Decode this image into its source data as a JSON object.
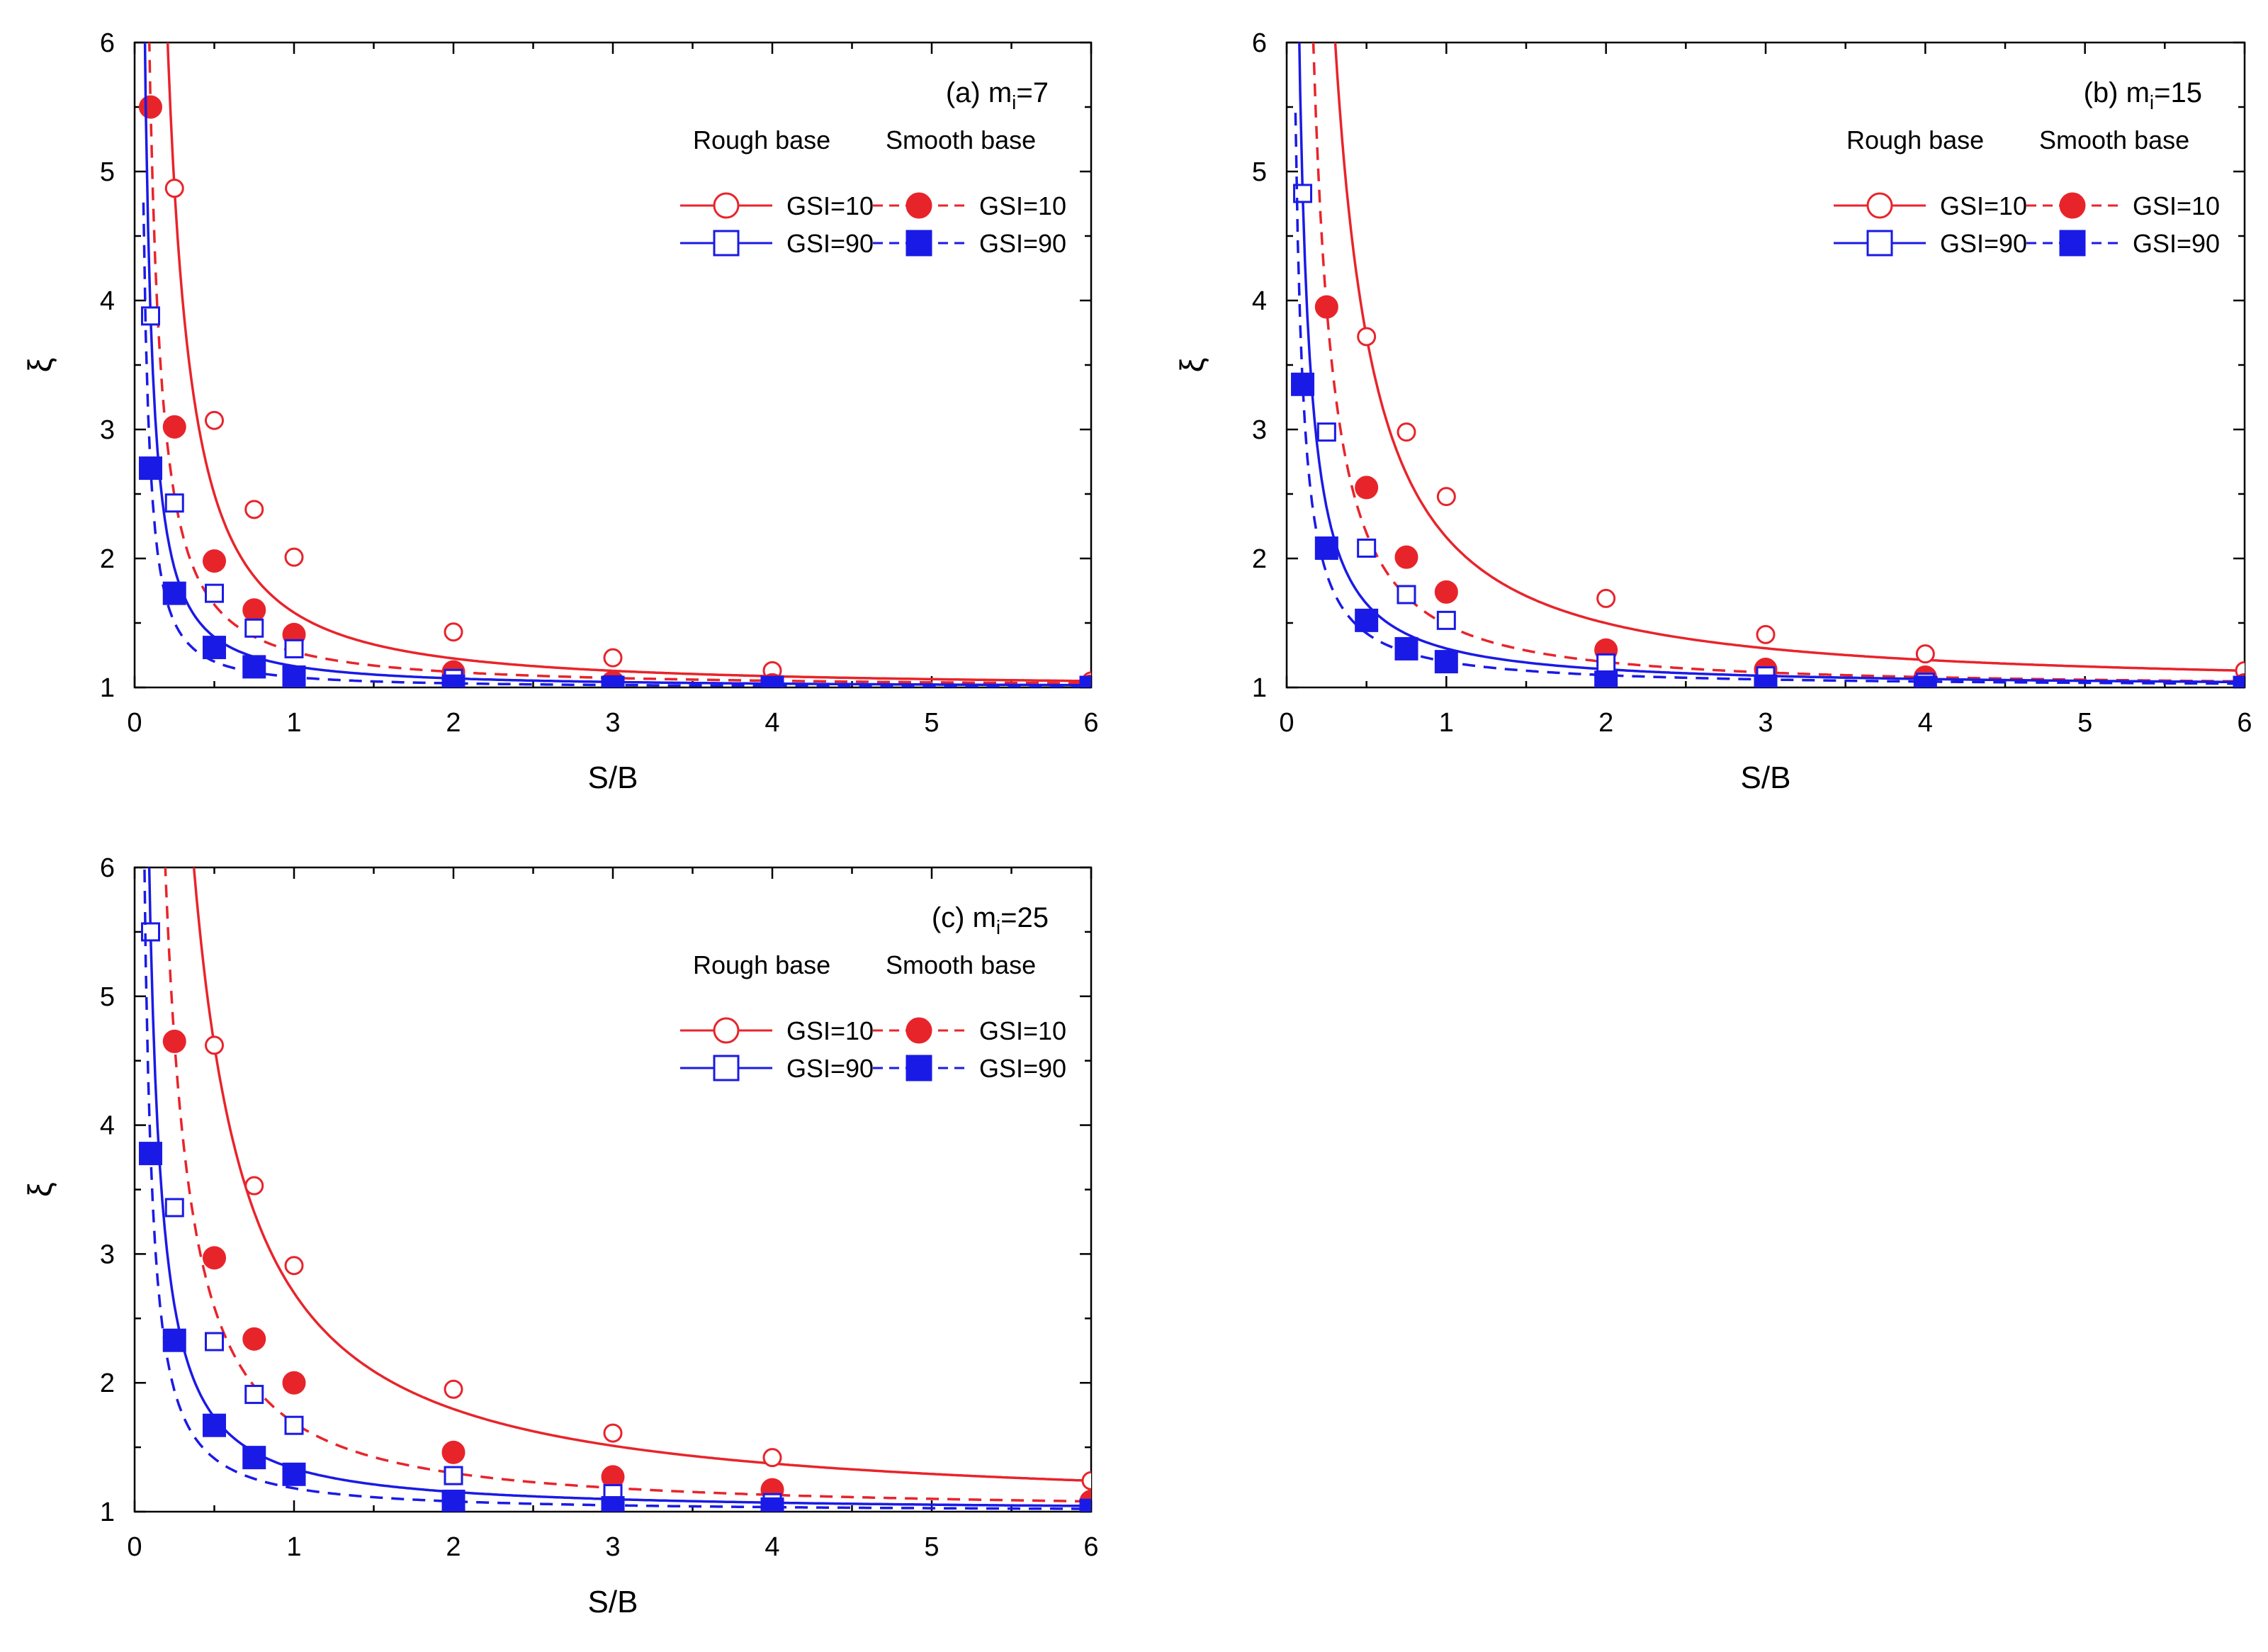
{
  "colors": {
    "rough_gsi10": "#e8242b",
    "smooth_gsi10": "#e8242b",
    "rough_gsi90": "#1a1ae6",
    "smooth_gsi90": "#1a1ae6",
    "axis": "#000000"
  },
  "legend": {
    "rough_header": "Rough base",
    "smooth_header": "Smooth base",
    "gsi10_label": "GSI=10",
    "gsi90_label": "GSI=90"
  },
  "chart_data": [
    {
      "type": "line",
      "title": "(a) m",
      "title_sub": "i",
      "title_suffix": "=7",
      "xlabel": "S/B",
      "ylabel": "ξ",
      "xlim": [
        0,
        6
      ],
      "ylim": [
        1,
        6
      ],
      "xticks": [
        0,
        1,
        2,
        3,
        4,
        5,
        6
      ],
      "yticks": [
        1,
        2,
        3,
        4,
        5,
        6
      ],
      "series": [
        {
          "name": "Rough base GSI=10",
          "key": "rough_gsi10",
          "x": [
            0.25,
            0.5,
            0.75,
            1,
            2,
            3,
            4,
            6
          ],
          "y": [
            4.87,
            3.07,
            2.38,
            2.01,
            1.43,
            1.23,
            1.13,
            1.05
          ]
        },
        {
          "name": "Smooth base GSI=10",
          "key": "smooth_gsi10",
          "x": [
            0.1,
            0.25,
            0.5,
            0.75,
            1,
            2,
            3,
            4,
            6
          ],
          "y": [
            5.5,
            3.02,
            1.98,
            1.6,
            1.41,
            1.12,
            1.04,
            1.02,
            1.01
          ]
        },
        {
          "name": "Rough base GSI=90",
          "key": "rough_gsi90",
          "x": [
            0.1,
            0.25,
            0.5,
            0.75,
            1,
            2,
            3,
            4,
            6
          ],
          "y": [
            3.88,
            2.43,
            1.73,
            1.46,
            1.3,
            1.07,
            1.02,
            1.01,
            1.0
          ]
        },
        {
          "name": "Smooth base GSI=90",
          "key": "smooth_gsi90",
          "x": [
            0.1,
            0.25,
            0.5,
            0.75,
            1,
            2,
            3,
            4,
            6
          ],
          "y": [
            2.7,
            1.73,
            1.31,
            1.16,
            1.08,
            1.01,
            1.0,
            1.0,
            1.0
          ]
        }
      ]
    },
    {
      "type": "line",
      "title": "(b) m",
      "title_sub": "i",
      "title_suffix": "=15",
      "xlabel": "S/B",
      "ylabel": "ξ",
      "xlim": [
        0,
        6
      ],
      "ylim": [
        1,
        6
      ],
      "xticks": [
        0,
        1,
        2,
        3,
        4,
        5,
        6
      ],
      "yticks": [
        1,
        2,
        3,
        4,
        5,
        6
      ],
      "series": [
        {
          "name": "Rough base GSI=10",
          "key": "rough_gsi10",
          "x": [
            0.5,
            0.75,
            1,
            2,
            3,
            4,
            6
          ],
          "y": [
            3.72,
            2.98,
            2.48,
            1.69,
            1.41,
            1.26,
            1.13
          ]
        },
        {
          "name": "Smooth base GSI=10",
          "key": "smooth_gsi10",
          "x": [
            0.25,
            0.5,
            0.75,
            1,
            2,
            3,
            4,
            6
          ],
          "y": [
            3.95,
            2.55,
            2.01,
            1.74,
            1.29,
            1.14,
            1.08,
            1.02
          ]
        },
        {
          "name": "Rough base GSI=90",
          "key": "rough_gsi90",
          "x": [
            0.1,
            0.25,
            0.5,
            0.75,
            1,
            2,
            3,
            4,
            6
          ],
          "y": [
            4.83,
            2.98,
            2.08,
            1.72,
            1.52,
            1.19,
            1.09,
            1.04,
            1.01
          ]
        },
        {
          "name": "Smooth base GSI=90",
          "key": "smooth_gsi90",
          "x": [
            0.1,
            0.25,
            0.5,
            0.75,
            1,
            2,
            3,
            4,
            6
          ],
          "y": [
            3.35,
            2.08,
            1.52,
            1.3,
            1.2,
            1.04,
            1.01,
            1.0,
            1.0
          ]
        }
      ]
    },
    {
      "type": "line",
      "title": "(c) m",
      "title_sub": "i",
      "title_suffix": "=25",
      "xlabel": "S/B",
      "ylabel": "ξ",
      "xlim": [
        0,
        6
      ],
      "ylim": [
        1,
        6
      ],
      "xticks": [
        0,
        1,
        2,
        3,
        4,
        5,
        6
      ],
      "yticks": [
        1,
        2,
        3,
        4,
        5,
        6
      ],
      "series": [
        {
          "name": "Rough base GSI=10",
          "key": "rough_gsi10",
          "x": [
            0.5,
            0.75,
            1,
            2,
            3,
            4,
            6
          ],
          "y": [
            4.62,
            3.53,
            2.91,
            1.95,
            1.61,
            1.42,
            1.24
          ]
        },
        {
          "name": "Smooth base GSI=10",
          "key": "smooth_gsi10",
          "x": [
            0.25,
            0.5,
            0.75,
            1,
            2,
            3,
            4,
            6
          ],
          "y": [
            4.65,
            2.97,
            2.34,
            2.0,
            1.46,
            1.27,
            1.17,
            1.08
          ]
        },
        {
          "name": "Rough base GSI=90",
          "key": "rough_gsi90",
          "x": [
            0.1,
            0.25,
            0.5,
            0.75,
            1,
            2,
            3,
            4,
            6
          ],
          "y": [
            5.5,
            3.36,
            2.32,
            1.91,
            1.67,
            1.28,
            1.14,
            1.07,
            1.02
          ]
        },
        {
          "name": "Smooth base GSI=90",
          "key": "smooth_gsi90",
          "x": [
            0.1,
            0.25,
            0.5,
            0.75,
            1,
            2,
            3,
            4,
            6
          ],
          "y": [
            3.78,
            2.33,
            1.67,
            1.42,
            1.29,
            1.08,
            1.03,
            1.02,
            1.01
          ]
        }
      ]
    }
  ]
}
